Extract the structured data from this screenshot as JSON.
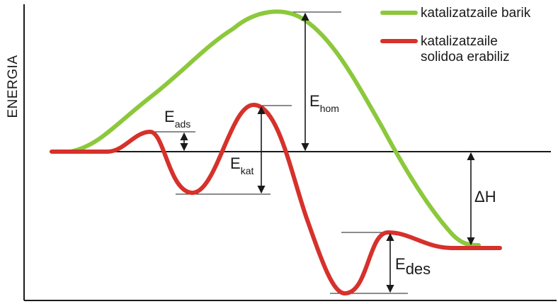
{
  "axis": {
    "y_label": "ENERGIA"
  },
  "legend": {
    "items": [
      {
        "label": "katalizatzaile barik",
        "color": "#8cc83c"
      },
      {
        "label_line1": "katalizatzaile",
        "label_line2": "solidoa erabiliz",
        "color": "#d6312b"
      }
    ]
  },
  "labels": {
    "e_hom": {
      "main": "E",
      "sub": "hom"
    },
    "e_ads": {
      "main": "E",
      "sub": "ads"
    },
    "e_kat": {
      "main": "E",
      "sub": "kat"
    },
    "e_des": {
      "main": "E",
      "sub": "des"
    },
    "delta_h": "ΔH"
  },
  "colors": {
    "uncatalyzed": "#8cc83c",
    "catalyzed": "#d6312b",
    "lines": "#1a1a1a"
  }
}
